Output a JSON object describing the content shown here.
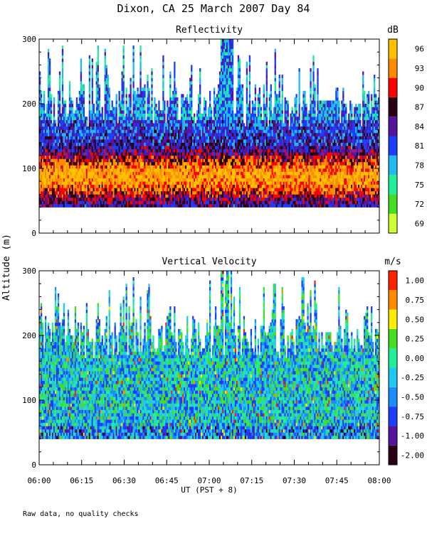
{
  "title": "Dixon, CA 25 March 2007  Day  84",
  "footnote": "Raw data, no quality checks",
  "chart_data": [
    {
      "type": "heatmap",
      "title": "Reflectivity",
      "ylabel": "Altitude (m)",
      "xlabel": "UT  (PST + 8)",
      "x_range_minutes": [
        0,
        120
      ],
      "xticks": [
        "06:00",
        "06:15",
        "06:30",
        "06:45",
        "07:00",
        "07:15",
        "07:30",
        "07:45",
        "08:00"
      ],
      "ylim": [
        0,
        300
      ],
      "yticks": [
        0,
        100,
        200,
        300
      ],
      "data_altitude_range": [
        40,
        300
      ],
      "colorbar": {
        "unit": "dB",
        "labels": [
          "69",
          "72",
          "75",
          "78",
          "81",
          "84",
          "87",
          "90",
          "93",
          "96"
        ],
        "colors": [
          "#ccff33",
          "#44dd22",
          "#22ee99",
          "#22b8f0",
          "#1a3dff",
          "#55149e",
          "#2a0014",
          "#ff0000",
          "#ff8c00",
          "#ffc000"
        ]
      },
      "notes": "Highest reflectivity (87-96 dB) concentrated in a band between about 50 and 130 m altitude; returns above ~180 m are sparse."
    },
    {
      "type": "heatmap",
      "title": "Vertical Velocity",
      "ylabel": "Altitude (m)",
      "xlabel": "UT  (PST + 8)",
      "x_range_minutes": [
        0,
        120
      ],
      "xticks": [
        "06:00",
        "06:15",
        "06:30",
        "06:45",
        "07:00",
        "07:15",
        "07:30",
        "07:45",
        "08:00"
      ],
      "ylim": [
        0,
        300
      ],
      "yticks": [
        0,
        100,
        200,
        300
      ],
      "data_altitude_range": [
        40,
        300
      ],
      "colorbar": {
        "unit": "m/s",
        "labels": [
          "-2.00",
          "-1.00",
          "-0.75",
          "-0.50",
          "-0.25",
          "0.00",
          "0.25",
          "0.50",
          "0.75",
          "1.00"
        ],
        "colors": [
          "#2a0014",
          "#55149e",
          "#1a3dff",
          "#1a8dff",
          "#22c8f0",
          "#22ee99",
          "#44dd22",
          "#ffee00",
          "#ff8c00",
          "#ff2200"
        ]
      },
      "notes": "Mixed mostly -0.75 to 0.50 m/s; dark downward velocities near the lowest range gates (~40-60 m)."
    }
  ]
}
